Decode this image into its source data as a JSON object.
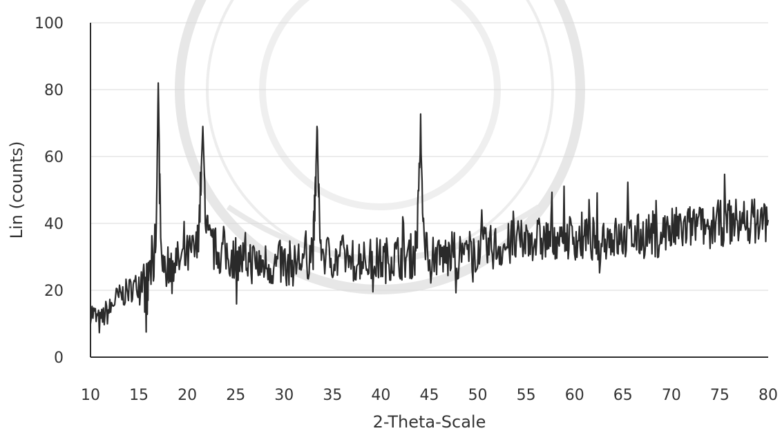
{
  "chart_data": {
    "type": "line",
    "xlabel": "2-Theta-Scale",
    "ylabel": "Lin (counts)",
    "xlim": [
      10,
      80
    ],
    "ylim": [
      0,
      100
    ],
    "x_ticks": [
      "10",
      "15",
      "20",
      "25",
      "30",
      "35",
      "40",
      "45",
      "50",
      "55",
      "60",
      "65",
      "70",
      "75",
      "80"
    ],
    "y_ticks": [
      "0",
      "20",
      "40",
      "60",
      "80",
      "100"
    ],
    "grid": "horizontal",
    "series": [
      {
        "color": "#2a2a2a",
        "points": [
          [
            10.0,
            14
          ],
          [
            10.5,
            12
          ],
          [
            11.0,
            10
          ],
          [
            11.5,
            13
          ],
          [
            12.0,
            14
          ],
          [
            12.5,
            17
          ],
          [
            13.0,
            18
          ],
          [
            13.5,
            19
          ],
          [
            14.0,
            20
          ],
          [
            14.5,
            21
          ],
          [
            15.0,
            22
          ],
          [
            15.5,
            24
          ],
          [
            15.8,
            12
          ],
          [
            16.0,
            25
          ],
          [
            16.5,
            27
          ],
          [
            16.8,
            40
          ],
          [
            17.0,
            82
          ],
          [
            17.2,
            45
          ],
          [
            17.5,
            28
          ],
          [
            18.0,
            27
          ],
          [
            18.5,
            30
          ],
          [
            19.0,
            28
          ],
          [
            19.5,
            29
          ],
          [
            20.0,
            30
          ],
          [
            20.5,
            31
          ],
          [
            21.0,
            32
          ],
          [
            21.3,
            45
          ],
          [
            21.6,
            69
          ],
          [
            21.9,
            42
          ],
          [
            22.2,
            34
          ],
          [
            22.5,
            33
          ],
          [
            23.0,
            32
          ],
          [
            23.5,
            31
          ],
          [
            24.0,
            31
          ],
          [
            24.5,
            30
          ],
          [
            25.0,
            30
          ],
          [
            25.5,
            29
          ],
          [
            26.0,
            29
          ],
          [
            26.5,
            29
          ],
          [
            27.0,
            28
          ],
          [
            27.5,
            28
          ],
          [
            28.0,
            28
          ],
          [
            28.5,
            28
          ],
          [
            29.0,
            27
          ],
          [
            29.5,
            28
          ],
          [
            30.0,
            28
          ],
          [
            30.5,
            28
          ],
          [
            31.0,
            28
          ],
          [
            31.5,
            29
          ],
          [
            32.0,
            29
          ],
          [
            32.5,
            30
          ],
          [
            33.0,
            33
          ],
          [
            33.2,
            46
          ],
          [
            33.4,
            69
          ],
          [
            33.6,
            45
          ],
          [
            33.9,
            32
          ],
          [
            34.5,
            30
          ],
          [
            35.0,
            30
          ],
          [
            35.5,
            29
          ],
          [
            36.0,
            30
          ],
          [
            36.5,
            30
          ],
          [
            37.0,
            29
          ],
          [
            37.5,
            29
          ],
          [
            38.0,
            30
          ],
          [
            38.5,
            29
          ],
          [
            39.0,
            29
          ],
          [
            39.5,
            29
          ],
          [
            40.0,
            29
          ],
          [
            40.5,
            29
          ],
          [
            41.0,
            30
          ],
          [
            41.5,
            30
          ],
          [
            42.0,
            30
          ],
          [
            42.5,
            30
          ],
          [
            43.0,
            30
          ],
          [
            43.5,
            31
          ],
          [
            43.8,
            40
          ],
          [
            44.1,
            65
          ],
          [
            44.4,
            40
          ],
          [
            44.8,
            31
          ],
          [
            45.5,
            31
          ],
          [
            46.0,
            30
          ],
          [
            46.5,
            30
          ],
          [
            47.0,
            30
          ],
          [
            47.5,
            31
          ],
          [
            48.0,
            30
          ],
          [
            48.5,
            31
          ],
          [
            49.0,
            31
          ],
          [
            49.5,
            32
          ],
          [
            50.0,
            32
          ],
          [
            50.5,
            32
          ],
          [
            51.0,
            32
          ],
          [
            51.5,
            33
          ],
          [
            52.0,
            33
          ],
          [
            52.5,
            33
          ],
          [
            53.0,
            33
          ],
          [
            53.5,
            34
          ],
          [
            54.0,
            34
          ],
          [
            54.5,
            34
          ],
          [
            55.0,
            35
          ],
          [
            55.5,
            36
          ],
          [
            56.0,
            35
          ],
          [
            56.5,
            35
          ],
          [
            57.0,
            35
          ],
          [
            57.5,
            36
          ],
          [
            58.0,
            36
          ],
          [
            58.5,
            36
          ],
          [
            59.0,
            36
          ],
          [
            59.5,
            36
          ],
          [
            60.0,
            36
          ],
          [
            60.5,
            35
          ],
          [
            61.0,
            35
          ],
          [
            61.5,
            35
          ],
          [
            62.0,
            35
          ],
          [
            62.5,
            35
          ],
          [
            63.0,
            36
          ],
          [
            63.5,
            36
          ],
          [
            64.0,
            36
          ],
          [
            64.5,
            35
          ],
          [
            65.0,
            35
          ],
          [
            65.5,
            36
          ],
          [
            66.0,
            36
          ],
          [
            66.5,
            36
          ],
          [
            67.0,
            36
          ],
          [
            67.5,
            37
          ],
          [
            68.0,
            37
          ],
          [
            68.5,
            37
          ],
          [
            69.0,
            37
          ],
          [
            69.5,
            38
          ],
          [
            70.0,
            38
          ],
          [
            70.5,
            38
          ],
          [
            71.0,
            38
          ],
          [
            71.5,
            38
          ],
          [
            72.0,
            39
          ],
          [
            72.5,
            39
          ],
          [
            73.0,
            39
          ],
          [
            73.5,
            39
          ],
          [
            74.0,
            39
          ],
          [
            74.5,
            40
          ],
          [
            75.0,
            40
          ],
          [
            75.5,
            40
          ],
          [
            76.0,
            40
          ],
          [
            76.5,
            41
          ],
          [
            77.0,
            40
          ],
          [
            77.5,
            41
          ],
          [
            78.0,
            41
          ],
          [
            78.5,
            41
          ],
          [
            79.0,
            40
          ],
          [
            79.5,
            41
          ],
          [
            80.0,
            41
          ]
        ]
      }
    ]
  }
}
